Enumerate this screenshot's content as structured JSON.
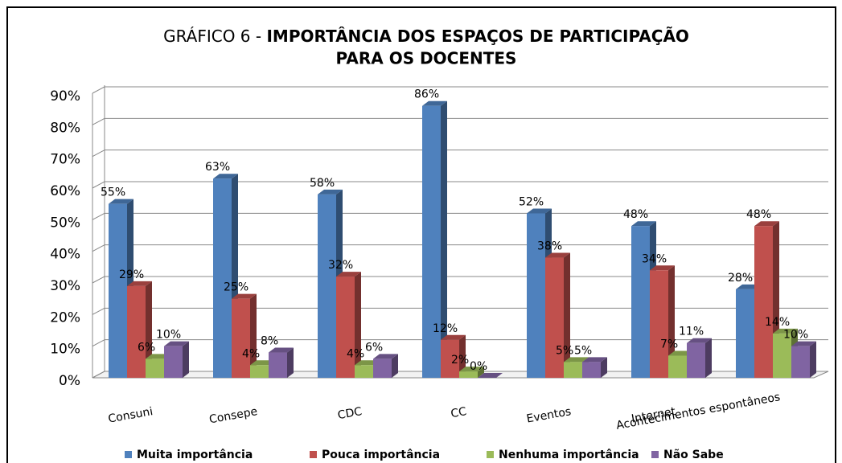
{
  "chart_data": {
    "type": "bar3d",
    "title": [
      "GRÁFICO 6 -",
      "IMPORTÂNCIA DOS ESPAÇOS DE PARTICIPAÇÃO",
      "PARA OS DOCENTES"
    ],
    "categories": [
      "Consuni",
      "Consepe",
      "CDC",
      "CC",
      "Eventos",
      "Internet",
      "Acontecimentos espontâneos"
    ],
    "series": [
      {
        "name": "Muita importância",
        "color": "#4f81bd",
        "values": [
          55,
          63,
          58,
          86,
          52,
          48,
          28
        ],
        "value_labels": [
          "55%",
          "63%",
          "58%",
          "86%",
          "52%",
          "48%",
          "28%"
        ]
      },
      {
        "name": "Pouca importância",
        "color": "#c0504d",
        "values": [
          29,
          25,
          32,
          12,
          38,
          34,
          48
        ],
        "value_labels": [
          "29%",
          "25%",
          "32%",
          "12%",
          "38%",
          "34%",
          "48%"
        ]
      },
      {
        "name": "Nenhuma importância",
        "color": "#9bbb59",
        "values": [
          6,
          4,
          4,
          2,
          5,
          7,
          14
        ],
        "value_labels": [
          "6%",
          "4%",
          "4%",
          "2%",
          "5%",
          "7%",
          "14%"
        ]
      },
      {
        "name": "Não Sabe",
        "color": "#8064a2",
        "values": [
          10,
          8,
          6,
          0,
          5,
          11,
          10
        ],
        "value_labels": [
          "10%",
          "8%",
          "6%",
          "0%",
          "5%",
          "11%",
          "10%"
        ]
      }
    ],
    "ylim": [
      0,
      90
    ],
    "yticks": [
      {
        "value": 0,
        "label": "0%"
      },
      {
        "value": 10,
        "label": "10%"
      },
      {
        "value": 20,
        "label": "20%"
      },
      {
        "value": 30,
        "label": "30%"
      },
      {
        "value": 40,
        "label": "40%"
      },
      {
        "value": 50,
        "label": "50%"
      },
      {
        "value": 60,
        "label": "60%"
      },
      {
        "value": 70,
        "label": "70%"
      },
      {
        "value": 80,
        "label": "80%"
      },
      {
        "value": 90,
        "label": "90%"
      }
    ],
    "grid": true,
    "legend": "bottom"
  }
}
